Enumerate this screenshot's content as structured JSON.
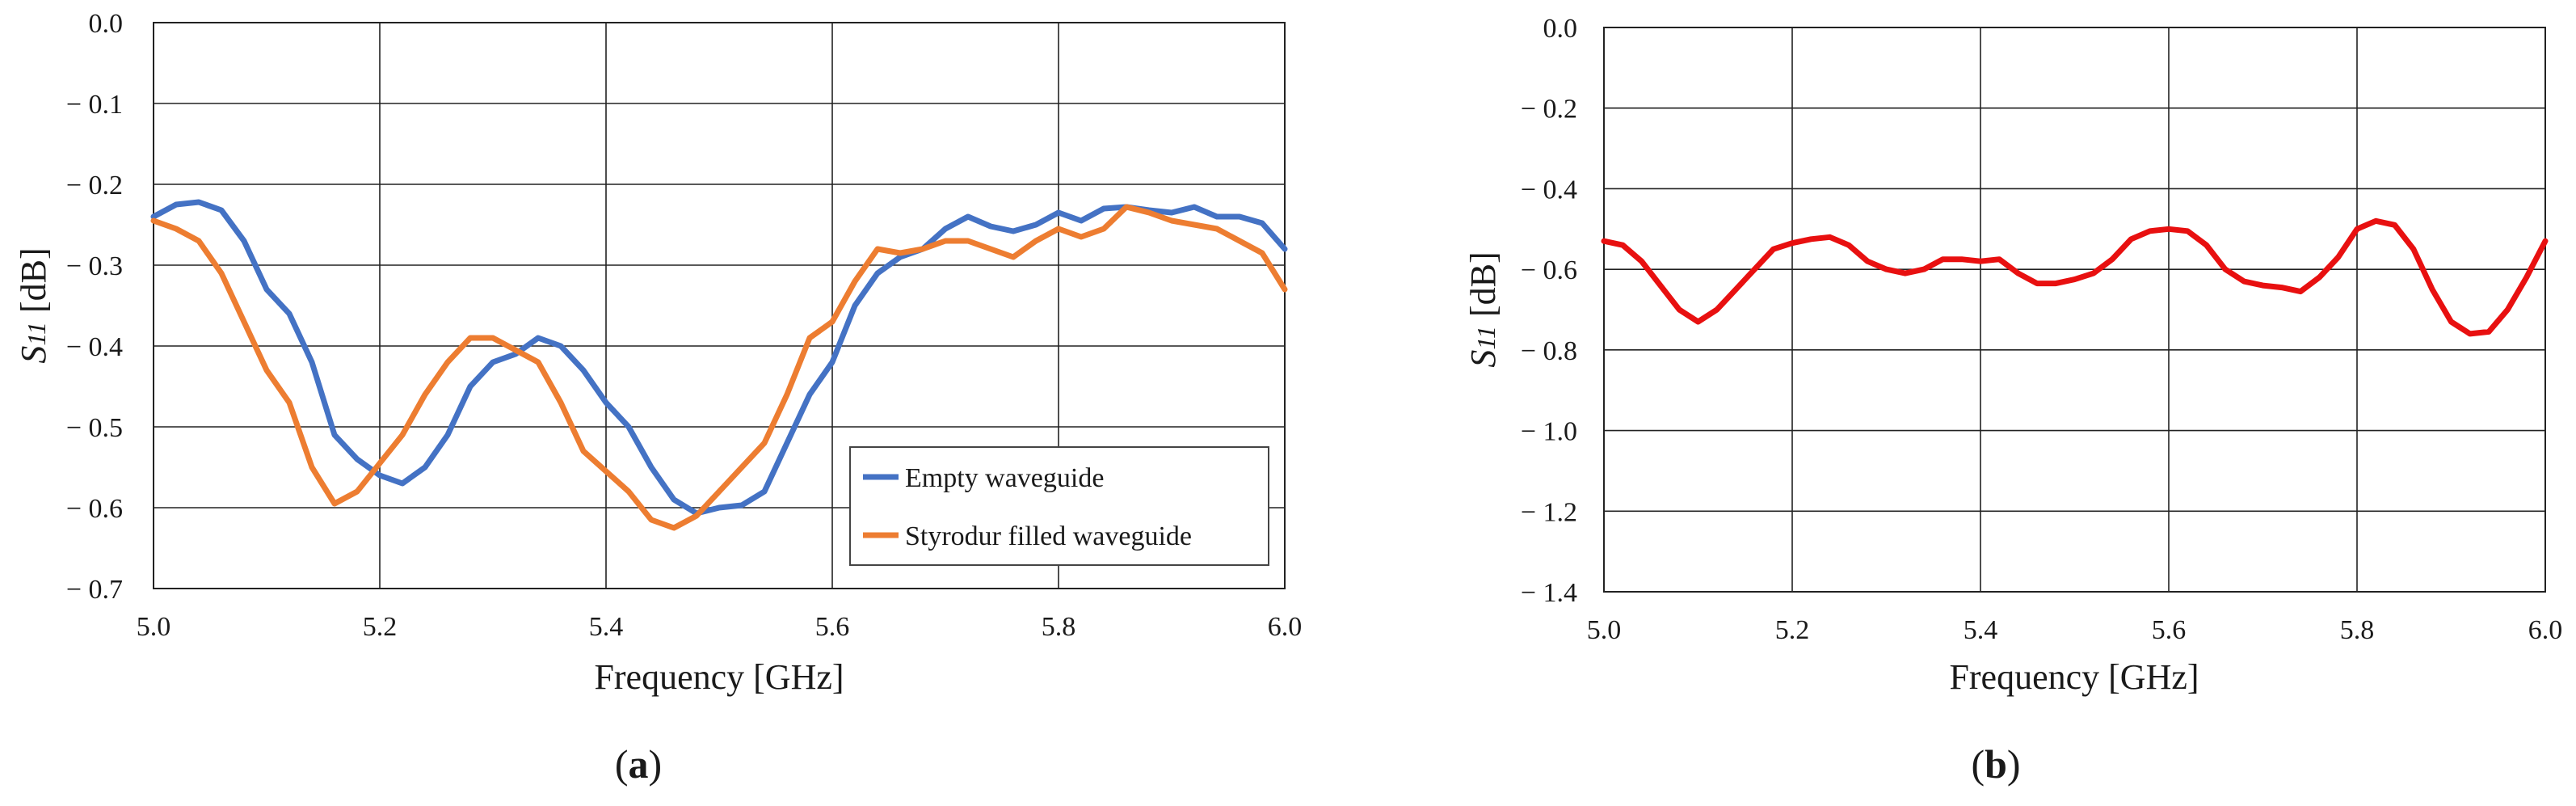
{
  "chart_data": [
    {
      "type": "line",
      "panel": "a",
      "caption": {
        "open": "(",
        "letter": "a",
        "close": ")"
      },
      "title": "",
      "xlabel": "Frequency [GHz]",
      "ylabel_prefix": "S",
      "ylabel_sub": "11",
      "ylabel_suffix": " [dB]",
      "xlim": [
        5.0,
        6.0
      ],
      "ylim": [
        -0.7,
        0.0
      ],
      "xticks": [
        5.0,
        5.2,
        5.4,
        5.6,
        5.8,
        6.0
      ],
      "yticks": [
        0.0,
        -0.1,
        -0.2,
        -0.3,
        -0.4,
        -0.5,
        -0.6,
        -0.7
      ],
      "xtick_labels": [
        "5.0",
        "5.2",
        "5.4",
        "5.6",
        "5.8",
        "6.0"
      ],
      "ytick_labels": [
        "0.0",
        "− 0.1",
        "− 0.2",
        "− 0.3",
        "− 0.4",
        "− 0.5",
        "− 0.6",
        "− 0.7"
      ],
      "grid": true,
      "legend": "bottom-right",
      "series": [
        {
          "name": "Empty waveguide",
          "color": "#4472C4",
          "x": [
            5.0,
            5.02,
            5.04,
            5.06,
            5.08,
            5.1,
            5.12,
            5.14,
            5.16,
            5.18,
            5.2,
            5.22,
            5.24,
            5.26,
            5.28,
            5.3,
            5.32,
            5.34,
            5.36,
            5.38,
            5.4,
            5.42,
            5.44,
            5.46,
            5.48,
            5.5,
            5.52,
            5.54,
            5.56,
            5.58,
            5.6,
            5.62,
            5.64,
            5.66,
            5.68,
            5.7,
            5.72,
            5.74,
            5.76,
            5.78,
            5.8,
            5.82,
            5.84,
            5.86,
            5.88,
            5.9,
            5.92,
            5.94,
            5.96,
            5.98,
            6.0
          ],
          "y": [
            -0.24,
            -0.225,
            -0.222,
            -0.232,
            -0.27,
            -0.33,
            -0.36,
            -0.42,
            -0.51,
            -0.54,
            -0.56,
            -0.57,
            -0.55,
            -0.51,
            -0.45,
            -0.42,
            -0.41,
            -0.39,
            -0.4,
            -0.43,
            -0.47,
            -0.5,
            -0.55,
            -0.59,
            -0.607,
            -0.6,
            -0.597,
            -0.58,
            -0.52,
            -0.46,
            -0.42,
            -0.35,
            -0.31,
            -0.29,
            -0.28,
            -0.255,
            -0.24,
            -0.252,
            -0.258,
            -0.25,
            -0.235,
            -0.245,
            -0.23,
            -0.228,
            -0.232,
            -0.235,
            -0.228,
            -0.24,
            -0.24,
            -0.248,
            -0.28
          ]
        },
        {
          "name": "Styrodur filled waveguide",
          "color": "#ED7D31",
          "x": [
            5.0,
            5.02,
            5.04,
            5.06,
            5.08,
            5.1,
            5.12,
            5.14,
            5.16,
            5.18,
            5.2,
            5.22,
            5.24,
            5.26,
            5.28,
            5.3,
            5.32,
            5.34,
            5.36,
            5.38,
            5.4,
            5.42,
            5.44,
            5.46,
            5.48,
            5.5,
            5.52,
            5.54,
            5.56,
            5.58,
            5.6,
            5.62,
            5.64,
            5.66,
            5.68,
            5.7,
            5.72,
            5.74,
            5.76,
            5.78,
            5.8,
            5.82,
            5.84,
            5.86,
            5.88,
            5.9,
            5.92,
            5.94,
            5.96,
            5.98,
            6.0
          ],
          "y": [
            -0.245,
            -0.255,
            -0.27,
            -0.31,
            -0.37,
            -0.43,
            -0.47,
            -0.55,
            -0.595,
            -0.58,
            -0.545,
            -0.51,
            -0.46,
            -0.42,
            -0.39,
            -0.39,
            -0.405,
            -0.42,
            -0.47,
            -0.53,
            -0.555,
            -0.58,
            -0.615,
            -0.625,
            -0.61,
            -0.58,
            -0.55,
            -0.52,
            -0.46,
            -0.39,
            -0.37,
            -0.32,
            -0.28,
            -0.285,
            -0.28,
            -0.27,
            -0.27,
            -0.28,
            -0.29,
            -0.27,
            -0.255,
            -0.265,
            -0.255,
            -0.228,
            -0.235,
            -0.245,
            -0.25,
            -0.255,
            -0.27,
            -0.285,
            -0.33
          ]
        }
      ]
    },
    {
      "type": "line",
      "panel": "b",
      "caption": {
        "open": "(",
        "letter": "b",
        "close": ")"
      },
      "title": "",
      "xlabel": "Frequency [GHz]",
      "ylabel_prefix": "S",
      "ylabel_sub": "11",
      "ylabel_suffix": " [dB]",
      "xlim": [
        5.0,
        6.0
      ],
      "ylim": [
        -1.4,
        0.0
      ],
      "xticks": [
        5.0,
        5.2,
        5.4,
        5.6,
        5.8,
        6.0
      ],
      "yticks": [
        0.0,
        -0.2,
        -0.4,
        -0.6,
        -0.8,
        -1.0,
        -1.2,
        -1.4
      ],
      "xtick_labels": [
        "5.0",
        "5.2",
        "5.4",
        "5.6",
        "5.8",
        "6.0"
      ],
      "ytick_labels": [
        "0.0",
        "− 0.2",
        "− 0.4",
        "− 0.6",
        "− 0.8",
        "− 1.0",
        "− 1.2",
        "− 1.4"
      ],
      "grid": true,
      "legend": "none",
      "series": [
        {
          "name": "",
          "color": "#E81010",
          "x": [
            5.0,
            5.02,
            5.04,
            5.06,
            5.08,
            5.1,
            5.12,
            5.14,
            5.16,
            5.18,
            5.2,
            5.22,
            5.24,
            5.26,
            5.28,
            5.3,
            5.32,
            5.34,
            5.36,
            5.38,
            5.4,
            5.42,
            5.44,
            5.46,
            5.48,
            5.5,
            5.52,
            5.54,
            5.56,
            5.58,
            5.6,
            5.62,
            5.64,
            5.66,
            5.68,
            5.7,
            5.72,
            5.74,
            5.76,
            5.78,
            5.8,
            5.82,
            5.84,
            5.86,
            5.88,
            5.9,
            5.92,
            5.94,
            5.96,
            5.98,
            6.0
          ],
          "y": [
            -0.53,
            -0.54,
            -0.58,
            -0.64,
            -0.7,
            -0.73,
            -0.7,
            -0.65,
            -0.6,
            -0.55,
            -0.535,
            -0.525,
            -0.52,
            -0.54,
            -0.58,
            -0.6,
            -0.61,
            -0.6,
            -0.575,
            -0.575,
            -0.58,
            -0.575,
            -0.61,
            -0.635,
            -0.635,
            -0.625,
            -0.61,
            -0.575,
            -0.525,
            -0.505,
            -0.5,
            -0.505,
            -0.54,
            -0.6,
            -0.63,
            -0.64,
            -0.645,
            -0.655,
            -0.62,
            -0.57,
            -0.5,
            -0.48,
            -0.49,
            -0.55,
            -0.65,
            -0.73,
            -0.76,
            -0.755,
            -0.7,
            -0.62,
            -0.53
          ]
        }
      ]
    }
  ]
}
